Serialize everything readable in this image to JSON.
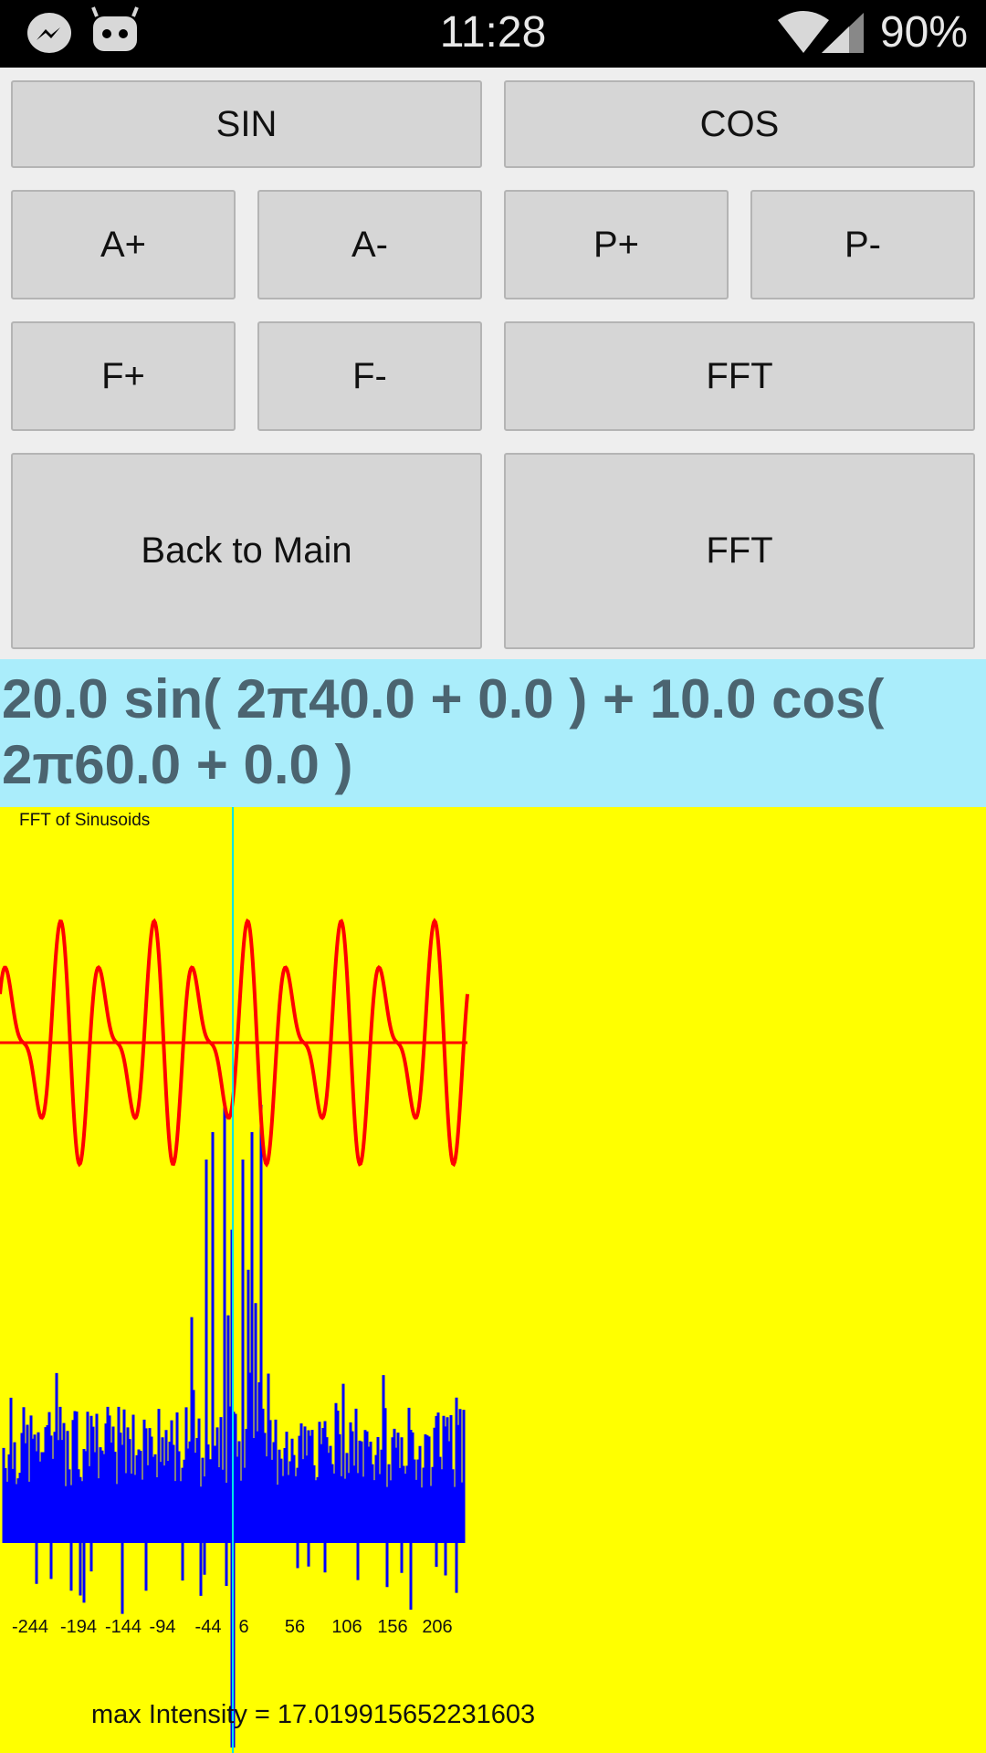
{
  "status_bar": {
    "time": "11:28",
    "battery": "90%"
  },
  "buttons": [
    "SIN",
    "COS",
    "A+",
    "A-",
    "P+",
    "P-",
    "F+",
    "F-",
    "FFT",
    "Back to Main",
    "FFT"
  ],
  "formula": "20.0 sin( 2π40.0 + 0.0 ) + 10.0 cos( 2π60.0 + 0.0 )",
  "plot": {
    "title": "FFT of Sinusoids",
    "x_labels": [
      -244,
      -194,
      -144,
      -94,
      -44,
      6,
      56,
      106,
      156,
      206
    ],
    "footer": "max Intensity = 17.019915652231603"
  }
}
